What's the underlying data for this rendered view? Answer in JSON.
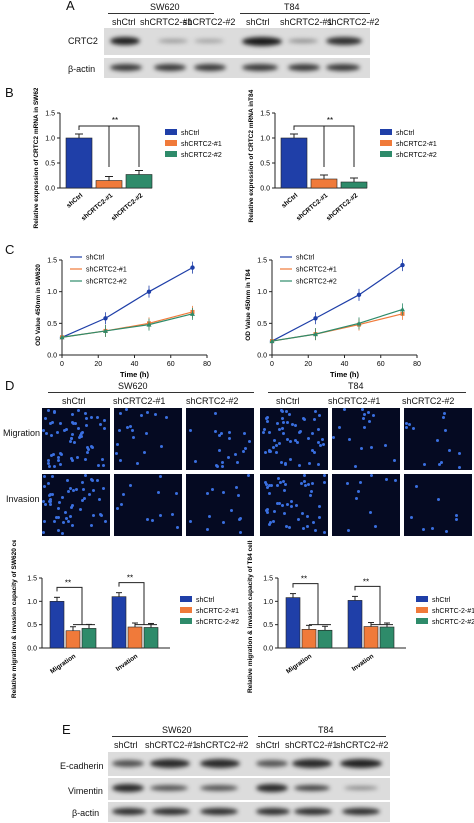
{
  "panels": {
    "A": "A",
    "B": "B",
    "C": "C",
    "D": "D",
    "E": "E"
  },
  "panelA": {
    "group_left": "SW620",
    "group_right": "T84",
    "lanes": [
      "shCtrl",
      "shCRTC2-#1",
      "shCRTC2-#2",
      "shCtrl",
      "shCRTC2-#1",
      "shCRTC2-#2"
    ],
    "rows": [
      "CRTC2",
      "β-actin"
    ]
  },
  "panelB": {
    "colors": {
      "ctrl": "#1f3fa8",
      "kd1": "#f07a3a",
      "kd2": "#2e8b6a"
    },
    "legend": [
      "shCtrl",
      "shCRTC2-#1",
      "shCRTC2-#2"
    ],
    "sig": "**",
    "left": {
      "ylabel": "Relative expression of CRTC2 mRNA in SW620 cells",
      "ticks": [
        "0.0",
        "0.5",
        "1.0",
        "1.5"
      ]
    },
    "right": {
      "ylabel": "Relative expression of CRTC2 mRNA inT84 cells",
      "ticks": [
        "0.0",
        "0.5",
        "1.0",
        "1.5"
      ]
    }
  },
  "panelC": {
    "xlabel": "Time (h)",
    "xticks": [
      "0",
      "20",
      "40",
      "60",
      "80"
    ],
    "yticks": [
      "0.0",
      "0.5",
      "1.0",
      "1.5"
    ],
    "left_ylabel": "OD Value 450nm in SW620",
    "right_ylabel": "OD Value 450nm in T84",
    "legend": [
      "shCtrl",
      "shCRTC2-#1",
      "shCRTC2-#2"
    ]
  },
  "panelD": {
    "group_left": "SW620",
    "group_right": "T84",
    "cols": [
      "shCtrl",
      "shCRTC2-#1",
      "shCRTC2-#2",
      "shCtrl",
      "shCRTC2-#1",
      "shCRTC2-#2"
    ],
    "rows": [
      "Migration",
      "Invasion"
    ],
    "left": {
      "ylabel": "Relative migration & invasion capacity of SW620 cells",
      "ticks": [
        "0.0",
        "0.5",
        "1.0",
        "1.5"
      ]
    },
    "right": {
      "ylabel": "Relative migration & invasion capacity of T84 cells",
      "ticks": [
        "0.0",
        "0.5",
        "1.0",
        "1.5"
      ]
    },
    "categories": [
      "Migration",
      "Invation"
    ],
    "legend": [
      "shCtrl",
      "shCRTC-2-#1",
      "shCRTC-2-#2"
    ],
    "sig": "**"
  },
  "panelE": {
    "group_left": "SW620",
    "group_right": "T84",
    "lanes": [
      "shCtrl",
      "shCRTC2-#1",
      "shCRTC2-#2",
      "shCtrl",
      "shCRTC2-#1",
      "shCRTC2-#2"
    ],
    "rows": [
      "E-cadherin",
      "Vimentin",
      "β-actin"
    ]
  },
  "chart_data": [
    {
      "type": "bar",
      "categories": [
        "shCtrl",
        "shCRTC2-#1",
        "shCRTC2-#2"
      ],
      "series": [
        {
          "name": "",
          "values": [
            1.0,
            0.15,
            0.27
          ]
        }
      ],
      "ylabel": "Relative expression of CRTC2 mRNA in SW620 cells",
      "ylim": [
        0,
        1.5
      ]
    },
    {
      "type": "bar",
      "categories": [
        "shCtrl",
        "shCRTC2-#1",
        "shCRTC2-#2"
      ],
      "series": [
        {
          "name": "",
          "values": [
            1.0,
            0.18,
            0.12
          ]
        }
      ],
      "ylabel": "Relative expression of CRTC2 mRNA inT84 cells",
      "ylim": [
        0,
        1.5
      ]
    },
    {
      "type": "line",
      "x": [
        0,
        24,
        48,
        72
      ],
      "series": [
        {
          "name": "shCtrl",
          "values": [
            0.28,
            0.58,
            1.0,
            1.38
          ]
        },
        {
          "name": "shCRTC2-#1",
          "values": [
            0.28,
            0.38,
            0.5,
            0.68
          ]
        },
        {
          "name": "shCRTC2-#2",
          "values": [
            0.28,
            0.38,
            0.48,
            0.65
          ]
        }
      ],
      "xlabel": "Time (h)",
      "ylim": [
        0,
        1.5
      ],
      "xlim": [
        0,
        80
      ]
    },
    {
      "type": "line",
      "x": [
        0,
        24,
        48,
        72
      ],
      "series": [
        {
          "name": "shCtrl",
          "values": [
            0.22,
            0.58,
            0.95,
            1.42
          ]
        },
        {
          "name": "shCRTC2-#1",
          "values": [
            0.22,
            0.33,
            0.48,
            0.65
          ]
        },
        {
          "name": "shCRTC2-#2",
          "values": [
            0.22,
            0.33,
            0.5,
            0.72
          ]
        }
      ],
      "xlabel": "Time (h)",
      "ylim": [
        0,
        1.5
      ],
      "xlim": [
        0,
        80
      ]
    },
    {
      "type": "bar",
      "categories": [
        "Migration",
        "Invation"
      ],
      "series": [
        {
          "name": "shCtrl",
          "values": [
            1.0,
            1.1
          ]
        },
        {
          "name": "shCRTC-2-#1",
          "values": [
            0.37,
            0.45
          ]
        },
        {
          "name": "shCRTC-2-#2",
          "values": [
            0.42,
            0.44
          ]
        }
      ],
      "ylim": [
        0,
        1.5
      ]
    },
    {
      "type": "bar",
      "categories": [
        "Migration",
        "Invation"
      ],
      "series": [
        {
          "name": "shCtrl",
          "values": [
            1.08,
            1.02
          ]
        },
        {
          "name": "shCRTC-2-#1",
          "values": [
            0.4,
            0.46
          ]
        },
        {
          "name": "shCRTC-2-#2",
          "values": [
            0.38,
            0.45
          ]
        }
      ],
      "ylim": [
        0,
        1.5
      ]
    }
  ]
}
